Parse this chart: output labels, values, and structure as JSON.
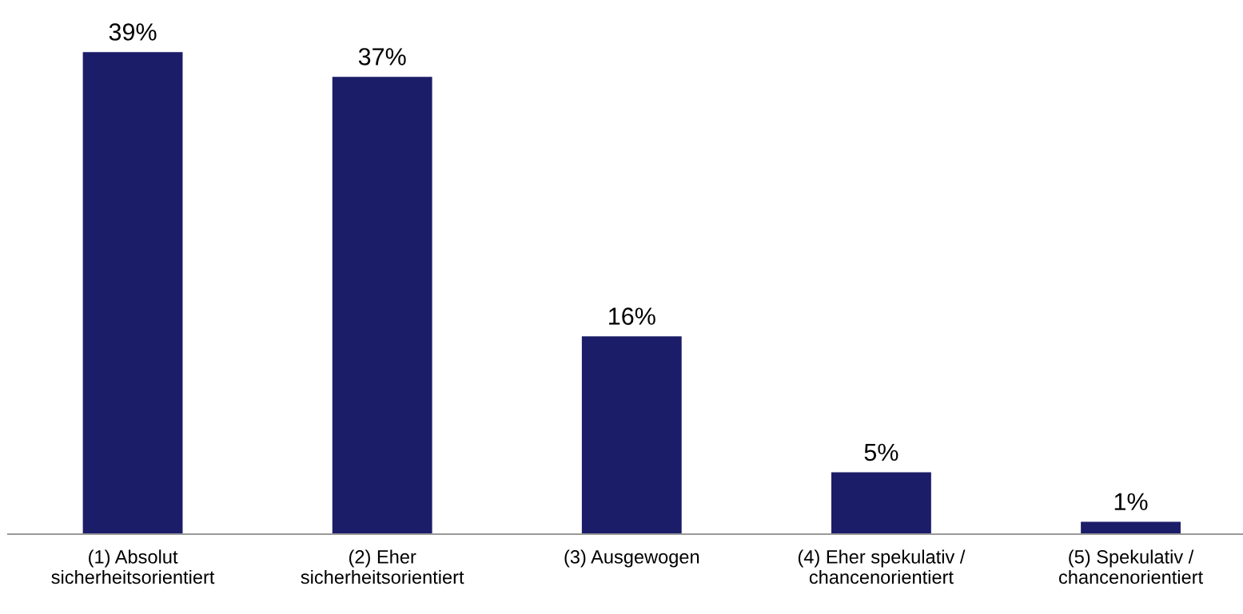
{
  "chart_data": {
    "type": "bar",
    "categories": [
      "(1) Absolut\nsicherheitsorientiert",
      "(2) Eher\nsicherheitsorientiert",
      "(3) Ausgewogen",
      "(4) Eher spekulativ /\nchancenorientiert",
      "(5) Spekulativ /\nchancenorientiert"
    ],
    "values": [
      39,
      37,
      16,
      5,
      1
    ],
    "value_labels": [
      "39%",
      "37%",
      "16%",
      "5%",
      "1%"
    ],
    "color": "#1c1d68",
    "grid": false,
    "legend": false
  }
}
